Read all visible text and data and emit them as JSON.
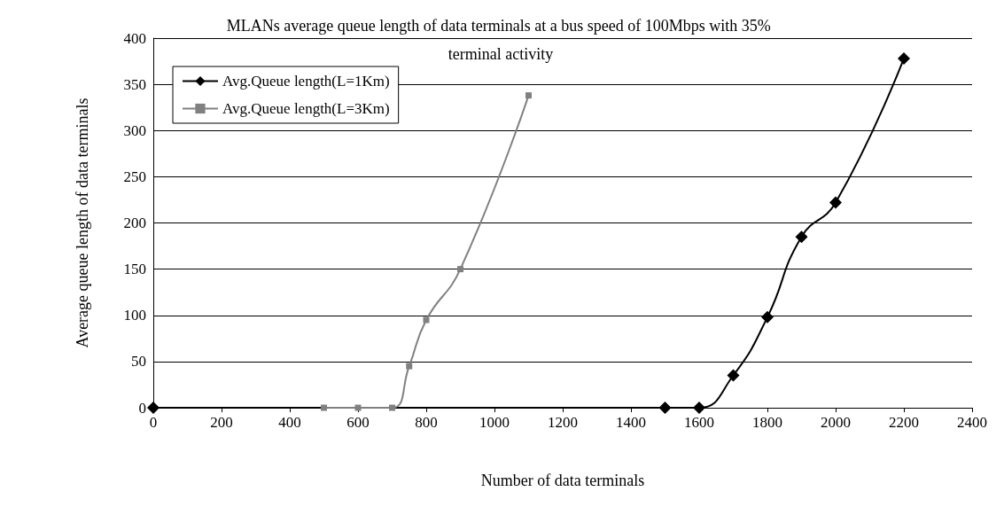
{
  "chart_data": {
    "type": "line",
    "title": "MLANs average queue length of data terminals at a bus speed of 100Mbps with 35% terminal activity",
    "xlabel": "Number of data terminals",
    "ylabel": "Average queue length of data terminals",
    "xlim": [
      0,
      2400
    ],
    "xticks": [
      0,
      200,
      400,
      600,
      800,
      1000,
      1200,
      1400,
      1600,
      1800,
      2000,
      2200,
      2400
    ],
    "ylim": [
      0,
      400
    ],
    "yticks": [
      0,
      50,
      100,
      150,
      200,
      250,
      300,
      350,
      400
    ],
    "grid": "y",
    "legend": "top left",
    "series": [
      {
        "name": "Avg.Queue length(L=1Km)",
        "color": "#000000",
        "marker": "diamond",
        "x": [
          0,
          1500,
          1600,
          1700,
          1800,
          1900,
          2000,
          2200
        ],
        "values": [
          0,
          0,
          0,
          35,
          98,
          185,
          222,
          378
        ]
      },
      {
        "name": "Avg.Queue length(L=3Km)",
        "color": "#808080",
        "marker": "square",
        "x": [
          500,
          600,
          700,
          750,
          800,
          900,
          1100
        ],
        "values": [
          0,
          0,
          0,
          45,
          95,
          150,
          338
        ]
      }
    ]
  }
}
